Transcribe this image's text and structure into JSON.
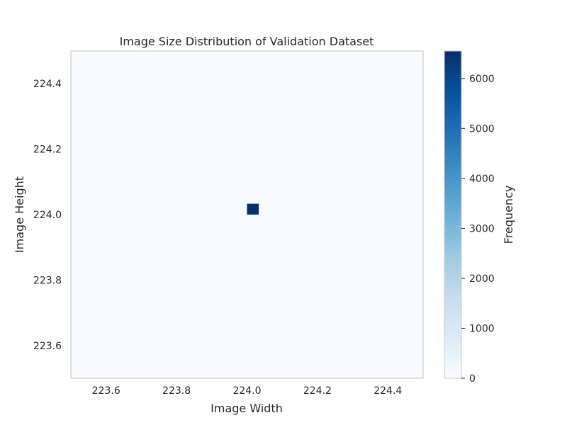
{
  "chart_data": {
    "type": "heatmap",
    "title": "Image Size Distribution of Validation Dataset",
    "xlabel": "Image Width",
    "ylabel": "Image Height",
    "xlim": [
      223.5,
      224.5
    ],
    "ylim": [
      223.5,
      224.5
    ],
    "x_ticks": [
      "223.6",
      "223.8",
      "224.0",
      "224.2",
      "224.4"
    ],
    "y_ticks": [
      "223.6",
      "223.8",
      "224.0",
      "224.2",
      "224.4"
    ],
    "colorbar": {
      "label": "Frequency",
      "min": 0,
      "max": 6550,
      "ticks": [
        "0",
        "1000",
        "2000",
        "3000",
        "4000",
        "5000",
        "6000"
      ],
      "colormap": "Blues",
      "low_color": "#f7fbff",
      "high_color": "#08306b"
    },
    "cells": [
      {
        "x": 224.0,
        "y": 224.0,
        "count": 6550
      }
    ],
    "background_value": 0,
    "grid": false
  }
}
